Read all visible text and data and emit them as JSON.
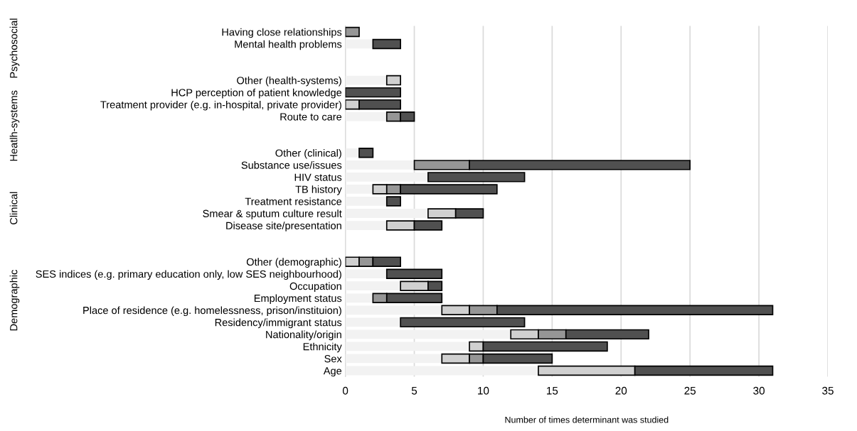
{
  "chart_data": {
    "type": "bar",
    "orientation": "horizontal",
    "stacked": true,
    "categories": [
      "Having close relationships",
      "Mental health problems",
      null,
      null,
      "Other (health-systems)",
      "HCP perception of patient knowledge",
      "Treatment provider (e.g. in-hospital, private provider)",
      "Route to care",
      null,
      null,
      "Other (clinical)",
      "Substance use/issues",
      "HIV status",
      "TB history",
      "Treatment resistance",
      "Smear & sputum culture result",
      "Disease site/presentation",
      null,
      null,
      "Other (demographic)",
      "SES indices (e.g. primary education only, low SES neighbourhood)",
      "Occupation",
      "Employment status",
      "Place of residence (e.g. homelessness, prison/instituion)",
      "Residency/immigrant status",
      "Nationality/origin",
      "Ethnicity",
      "Sex",
      "Age"
    ],
    "series": [
      {
        "color": "#f2f2f2",
        "values": [
          null,
          2,
          null,
          null,
          3,
          null,
          null,
          3,
          null,
          null,
          1,
          5,
          6,
          2,
          3,
          6,
          3,
          null,
          null,
          null,
          3,
          4,
          2,
          7,
          4,
          12,
          9,
          7,
          14
        ]
      },
      {
        "color": "#d0d0d0",
        "values": [
          null,
          null,
          null,
          null,
          1,
          null,
          1,
          null,
          null,
          null,
          null,
          null,
          null,
          1,
          null,
          2,
          2,
          null,
          null,
          1,
          null,
          2,
          null,
          2,
          null,
          2,
          1,
          2,
          7
        ]
      },
      {
        "color": "#969696",
        "values": [
          1,
          null,
          null,
          null,
          null,
          null,
          null,
          1,
          null,
          null,
          null,
          4,
          null,
          1,
          null,
          null,
          null,
          null,
          null,
          1,
          null,
          null,
          1,
          2,
          null,
          2,
          null,
          1,
          null
        ]
      },
      {
        "color": "#505050",
        "values": [
          null,
          2,
          null,
          null,
          null,
          4,
          3,
          1,
          null,
          null,
          1,
          16,
          7,
          7,
          1,
          2,
          2,
          null,
          null,
          2,
          4,
          1,
          4,
          20,
          9,
          6,
          9,
          5,
          10
        ]
      }
    ],
    "xlim": [
      0,
      35
    ],
    "xticks": [
      0,
      5,
      10,
      15,
      20,
      25,
      30,
      35
    ],
    "grid": "x",
    "xlabel": "Number of times determinant was studied",
    "annotations": [
      "Psychosocial",
      "Heatlh-systems",
      "Clinical",
      "Demographic"
    ]
  }
}
